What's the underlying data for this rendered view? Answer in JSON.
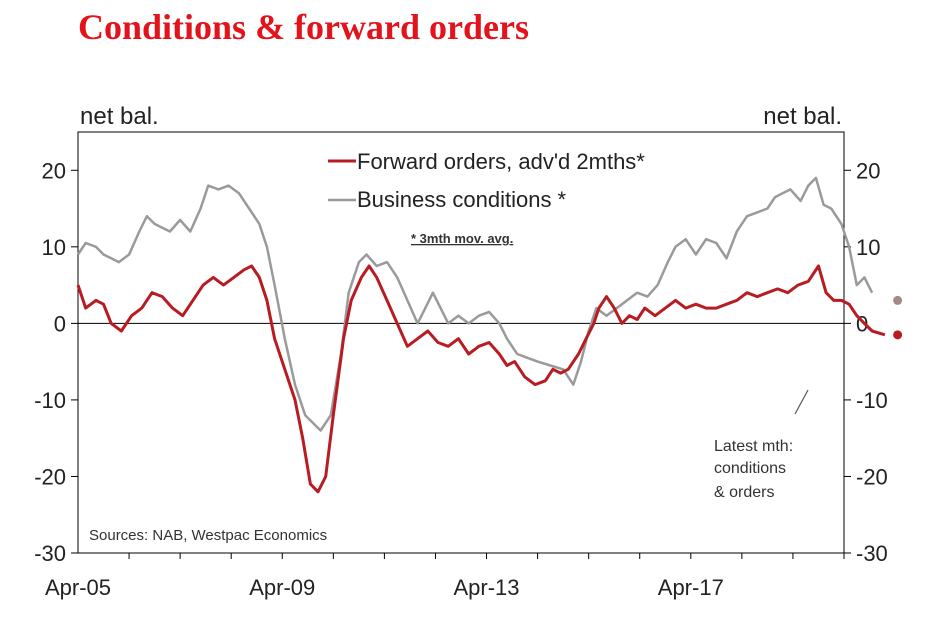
{
  "title": "Conditions & forward orders",
  "colors": {
    "title": "#e3131b",
    "forward_orders": "#b81c22",
    "business_conditions": "#9a9a9a",
    "latest_conditions_dot": "#a08c84",
    "latest_orders_dot": "#b81c22"
  },
  "chart_data": {
    "type": "line",
    "title": "Conditions & forward orders",
    "ylabel_left": "net bal.",
    "ylabel_right": "net bal.",
    "ylim": [
      -30,
      25
    ],
    "yticks": [
      -30,
      -20,
      -10,
      0,
      10,
      20
    ],
    "x_tick_labels": [
      "Apr-05",
      "Apr-09",
      "Apr-13",
      "Apr-17"
    ],
    "x_tick_positions": [
      2005.25,
      2009.25,
      2013.25,
      2017.25
    ],
    "xlim": [
      2005.25,
      2020.25
    ],
    "legend": [
      "Forward orders, adv'd 2mths*",
      "Business conditions *"
    ],
    "note": "* 3mth mov. avg.",
    "source": "Sources: NAB, Westpac Economics",
    "annotation": "Latest mth: conditions & orders",
    "annotation_lines": [
      "Latest mth:",
      "conditions",
      "& orders"
    ],
    "series": [
      {
        "name": "Forward orders, adv'd 2mths*",
        "points": [
          [
            2005.25,
            5
          ],
          [
            2005.4,
            2
          ],
          [
            2005.6,
            3
          ],
          [
            2005.75,
            2.5
          ],
          [
            2005.9,
            0
          ],
          [
            2006.1,
            -1
          ],
          [
            2006.3,
            1
          ],
          [
            2006.5,
            2
          ],
          [
            2006.7,
            4
          ],
          [
            2006.9,
            3.5
          ],
          [
            2007.1,
            2
          ],
          [
            2007.3,
            1
          ],
          [
            2007.5,
            3
          ],
          [
            2007.7,
            5
          ],
          [
            2007.9,
            6
          ],
          [
            2008.1,
            5
          ],
          [
            2008.3,
            6
          ],
          [
            2008.5,
            7
          ],
          [
            2008.65,
            7.5
          ],
          [
            2008.8,
            6
          ],
          [
            2008.95,
            3
          ],
          [
            2009.1,
            -2
          ],
          [
            2009.3,
            -6
          ],
          [
            2009.5,
            -10
          ],
          [
            2009.65,
            -15
          ],
          [
            2009.8,
            -21
          ],
          [
            2009.95,
            -22
          ],
          [
            2010.1,
            -20
          ],
          [
            2010.25,
            -12
          ],
          [
            2010.45,
            -2
          ],
          [
            2010.6,
            3
          ],
          [
            2010.8,
            6
          ],
          [
            2010.95,
            7.5
          ],
          [
            2011.1,
            6
          ],
          [
            2011.3,
            3
          ],
          [
            2011.5,
            0
          ],
          [
            2011.7,
            -3
          ],
          [
            2011.9,
            -2
          ],
          [
            2012.1,
            -1
          ],
          [
            2012.3,
            -2.5
          ],
          [
            2012.5,
            -3
          ],
          [
            2012.7,
            -2
          ],
          [
            2012.9,
            -4
          ],
          [
            2013.1,
            -3
          ],
          [
            2013.3,
            -2.5
          ],
          [
            2013.5,
            -4
          ],
          [
            2013.65,
            -5.5
          ],
          [
            2013.8,
            -5
          ],
          [
            2014.0,
            -7
          ],
          [
            2014.2,
            -8
          ],
          [
            2014.4,
            -7.5
          ],
          [
            2014.55,
            -6
          ],
          [
            2014.7,
            -6.5
          ],
          [
            2014.85,
            -6
          ],
          [
            2015.05,
            -4
          ],
          [
            2015.2,
            -2
          ],
          [
            2015.35,
            0
          ],
          [
            2015.45,
            2
          ],
          [
            2015.6,
            3.5
          ],
          [
            2015.75,
            2
          ],
          [
            2015.9,
            0
          ],
          [
            2016.05,
            1
          ],
          [
            2016.2,
            0.5
          ],
          [
            2016.35,
            2
          ],
          [
            2016.55,
            1
          ],
          [
            2016.75,
            2
          ],
          [
            2016.95,
            3
          ],
          [
            2017.15,
            2
          ],
          [
            2017.35,
            2.5
          ],
          [
            2017.55,
            2
          ],
          [
            2017.75,
            2
          ],
          [
            2017.95,
            2.5
          ],
          [
            2018.15,
            3
          ],
          [
            2018.35,
            4
          ],
          [
            2018.55,
            3.5
          ],
          [
            2018.75,
            4
          ],
          [
            2018.95,
            4.5
          ],
          [
            2019.15,
            4
          ],
          [
            2019.35,
            5
          ],
          [
            2019.55,
            5.5
          ],
          [
            2019.75,
            7.5
          ],
          [
            2019.9,
            4
          ],
          [
            2020.05,
            3
          ],
          [
            2020.2,
            3
          ],
          [
            2020.35,
            2.5
          ],
          [
            2020.5,
            1
          ],
          [
            2020.65,
            0
          ],
          [
            2020.8,
            -1
          ],
          [
            2021.05,
            -1.5
          ]
        ]
      },
      {
        "name": "Business conditions *",
        "points": [
          [
            2005.25,
            9
          ],
          [
            2005.4,
            10.5
          ],
          [
            2005.6,
            10
          ],
          [
            2005.75,
            9
          ],
          [
            2005.9,
            8.5
          ],
          [
            2006.05,
            8
          ],
          [
            2006.25,
            9
          ],
          [
            2006.45,
            12
          ],
          [
            2006.6,
            14
          ],
          [
            2006.75,
            13
          ],
          [
            2006.9,
            12.5
          ],
          [
            2007.05,
            12
          ],
          [
            2007.25,
            13.5
          ],
          [
            2007.45,
            12
          ],
          [
            2007.65,
            15
          ],
          [
            2007.8,
            18
          ],
          [
            2008.0,
            17.5
          ],
          [
            2008.2,
            18
          ],
          [
            2008.4,
            17
          ],
          [
            2008.6,
            15
          ],
          [
            2008.8,
            13
          ],
          [
            2008.95,
            10
          ],
          [
            2009.1,
            5
          ],
          [
            2009.3,
            -2
          ],
          [
            2009.5,
            -8
          ],
          [
            2009.7,
            -12
          ],
          [
            2009.85,
            -13
          ],
          [
            2010.0,
            -14
          ],
          [
            2010.2,
            -12
          ],
          [
            2010.4,
            -4
          ],
          [
            2010.55,
            4
          ],
          [
            2010.75,
            8
          ],
          [
            2010.9,
            9
          ],
          [
            2011.1,
            7.5
          ],
          [
            2011.3,
            8
          ],
          [
            2011.5,
            6
          ],
          [
            2011.7,
            3
          ],
          [
            2011.9,
            0
          ],
          [
            2012.05,
            2
          ],
          [
            2012.2,
            4
          ],
          [
            2012.35,
            2
          ],
          [
            2012.5,
            0
          ],
          [
            2012.7,
            1
          ],
          [
            2012.9,
            0
          ],
          [
            2013.1,
            1
          ],
          [
            2013.3,
            1.5
          ],
          [
            2013.5,
            0
          ],
          [
            2013.65,
            -2
          ],
          [
            2013.85,
            -4
          ],
          [
            2014.05,
            -4.5
          ],
          [
            2014.25,
            -5
          ],
          [
            2014.5,
            -5.5
          ],
          [
            2014.75,
            -6
          ],
          [
            2014.95,
            -8
          ],
          [
            2015.1,
            -5
          ],
          [
            2015.25,
            -1
          ],
          [
            2015.4,
            2
          ],
          [
            2015.6,
            1
          ],
          [
            2015.8,
            2
          ],
          [
            2016.0,
            3
          ],
          [
            2016.2,
            4
          ],
          [
            2016.4,
            3.5
          ],
          [
            2016.6,
            5
          ],
          [
            2016.8,
            8
          ],
          [
            2016.95,
            10
          ],
          [
            2017.15,
            11
          ],
          [
            2017.35,
            9
          ],
          [
            2017.55,
            11
          ],
          [
            2017.75,
            10.5
          ],
          [
            2017.95,
            8.5
          ],
          [
            2018.15,
            12
          ],
          [
            2018.35,
            14
          ],
          [
            2018.55,
            14.5
          ],
          [
            2018.75,
            15
          ],
          [
            2018.9,
            16.5
          ],
          [
            2019.05,
            17
          ],
          [
            2019.2,
            17.5
          ],
          [
            2019.4,
            16
          ],
          [
            2019.55,
            18
          ],
          [
            2019.7,
            19
          ],
          [
            2019.85,
            15.5
          ],
          [
            2020.0,
            15
          ],
          [
            2020.2,
            13
          ],
          [
            2020.35,
            10
          ],
          [
            2020.5,
            5
          ],
          [
            2020.65,
            6
          ],
          [
            2020.8,
            4
          ]
        ]
      }
    ],
    "latest": {
      "conditions": 3,
      "orders": -1.5,
      "x": 2021.3
    }
  }
}
